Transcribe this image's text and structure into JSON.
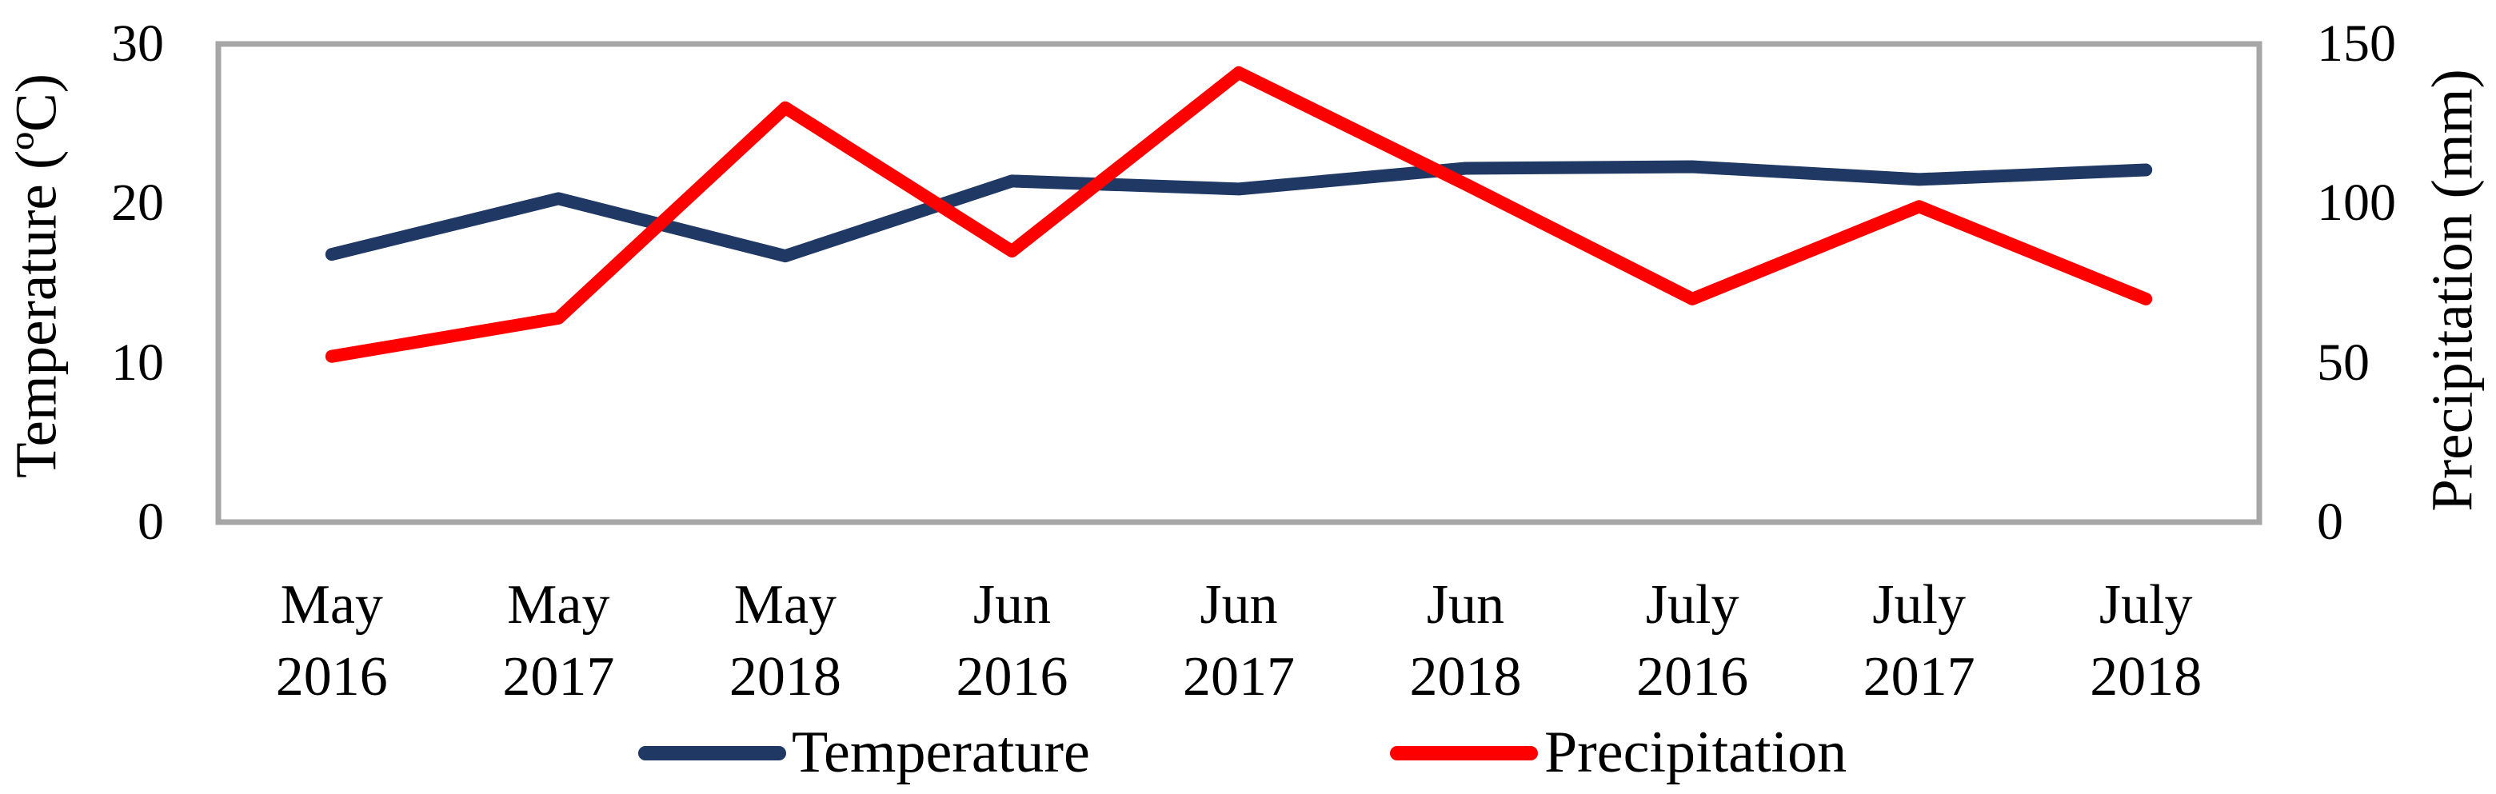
{
  "figure": {
    "background": "#ffffff",
    "text_color": "#000000"
  },
  "chart_data": {
    "type": "line",
    "title": "",
    "categories": [
      "May 2016",
      "May 2017",
      "May 2018",
      "Jun 2016",
      "Jun 2017",
      "Jun 2018",
      "July 2016",
      "July 2017",
      "July 2018"
    ],
    "series": [
      {
        "name": "Temperature",
        "axis": "left",
        "color": "#1f3864",
        "values": [
          16.8,
          20.3,
          16.7,
          21.4,
          20.9,
          22.2,
          22.3,
          21.5,
          22.1
        ]
      },
      {
        "name": "Precipitation",
        "axis": "right",
        "color": "#ff0000",
        "values": [
          52,
          64,
          130,
          85,
          141,
          106,
          70,
          99,
          70
        ]
      }
    ],
    "axes": {
      "left": {
        "label": "Temperature (ºC)",
        "min": 0,
        "max": 30,
        "ticks": [
          0,
          10,
          20,
          30
        ]
      },
      "right": {
        "label": "Precipitation (mm)",
        "min": 0,
        "max": 150,
        "ticks": [
          0,
          50,
          100,
          150
        ]
      }
    },
    "legend": {
      "position": "bottom-center",
      "items": [
        "Temperature",
        "Precipitation"
      ]
    },
    "plot": {
      "border_color": "#a6a6a6",
      "grid": false
    }
  }
}
